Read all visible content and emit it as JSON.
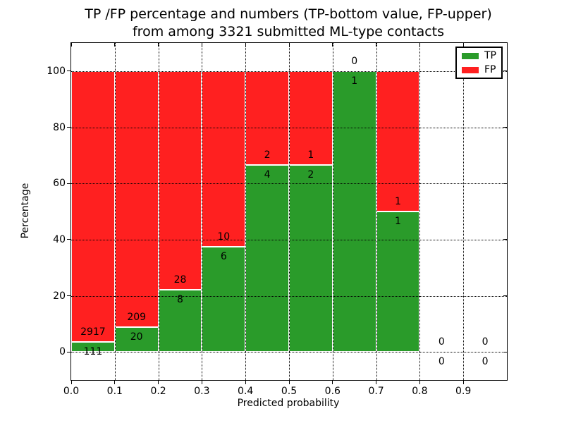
{
  "chart_data": {
    "type": "bar",
    "subtype": "stacked-percentage",
    "title": "TP /FP percentage and numbers (TP-bottom value, FP-upper) from among 3321 submitted ML-type contacts",
    "title_lines": [
      "TP /FP percentage and numbers (TP-bottom value, FP-upper)",
      "from among 3321 submitted ML-type contacts"
    ],
    "xlabel": "Predicted probability",
    "ylabel": "Percentage",
    "xlim": [
      0.0,
      1.0
    ],
    "ylim": [
      -10,
      110
    ],
    "xticks": [
      "0.0",
      "0.1",
      "0.2",
      "0.3",
      "0.4",
      "0.5",
      "0.6",
      "0.7",
      "0.8",
      "0.9"
    ],
    "xtick_values": [
      0.0,
      0.1,
      0.2,
      0.3,
      0.4,
      0.5,
      0.6,
      0.7,
      0.8,
      0.9
    ],
    "yticks": [
      "0",
      "20",
      "40",
      "60",
      "80",
      "100"
    ],
    "ytick_values": [
      0,
      20,
      40,
      60,
      80,
      100
    ],
    "grid": "dotted black, horizontal and vertical, drawn over bars",
    "total_submitted": 3321,
    "colors": {
      "tp": "#2a9b2a",
      "fp": "#ff2020"
    },
    "legend": {
      "position": "upper right",
      "entries": [
        {
          "label": "TP",
          "color_key": "tp"
        },
        {
          "label": "FP",
          "color_key": "fp"
        }
      ]
    },
    "bins": [
      {
        "x0": 0.0,
        "x1": 0.1,
        "tp": 111,
        "fp": 2917,
        "tp_pct": 3.67,
        "fp_pct": 96.33
      },
      {
        "x0": 0.1,
        "x1": 0.2,
        "tp": 20,
        "fp": 209,
        "tp_pct": 8.73,
        "fp_pct": 91.27
      },
      {
        "x0": 0.2,
        "x1": 0.3,
        "tp": 8,
        "fp": 28,
        "tp_pct": 22.22,
        "fp_pct": 77.78
      },
      {
        "x0": 0.3,
        "x1": 0.4,
        "tp": 6,
        "fp": 10,
        "tp_pct": 37.5,
        "fp_pct": 62.5
      },
      {
        "x0": 0.4,
        "x1": 0.5,
        "tp": 4,
        "fp": 2,
        "tp_pct": 66.67,
        "fp_pct": 33.33
      },
      {
        "x0": 0.5,
        "x1": 0.6,
        "tp": 2,
        "fp": 1,
        "tp_pct": 66.67,
        "fp_pct": 33.33
      },
      {
        "x0": 0.6,
        "x1": 0.7,
        "tp": 1,
        "fp": 0,
        "tp_pct": 100,
        "fp_pct": 0
      },
      {
        "x0": 0.7,
        "x1": 0.8,
        "tp": 1,
        "fp": 1,
        "tp_pct": 50,
        "fp_pct": 50
      },
      {
        "x0": 0.8,
        "x1": 0.9,
        "tp": 0,
        "fp": 0,
        "tp_pct": 0,
        "fp_pct": 0
      },
      {
        "x0": 0.9,
        "x1": 1.0,
        "tp": 0,
        "fp": 0,
        "tp_pct": 0,
        "fp_pct": 0
      }
    ]
  }
}
